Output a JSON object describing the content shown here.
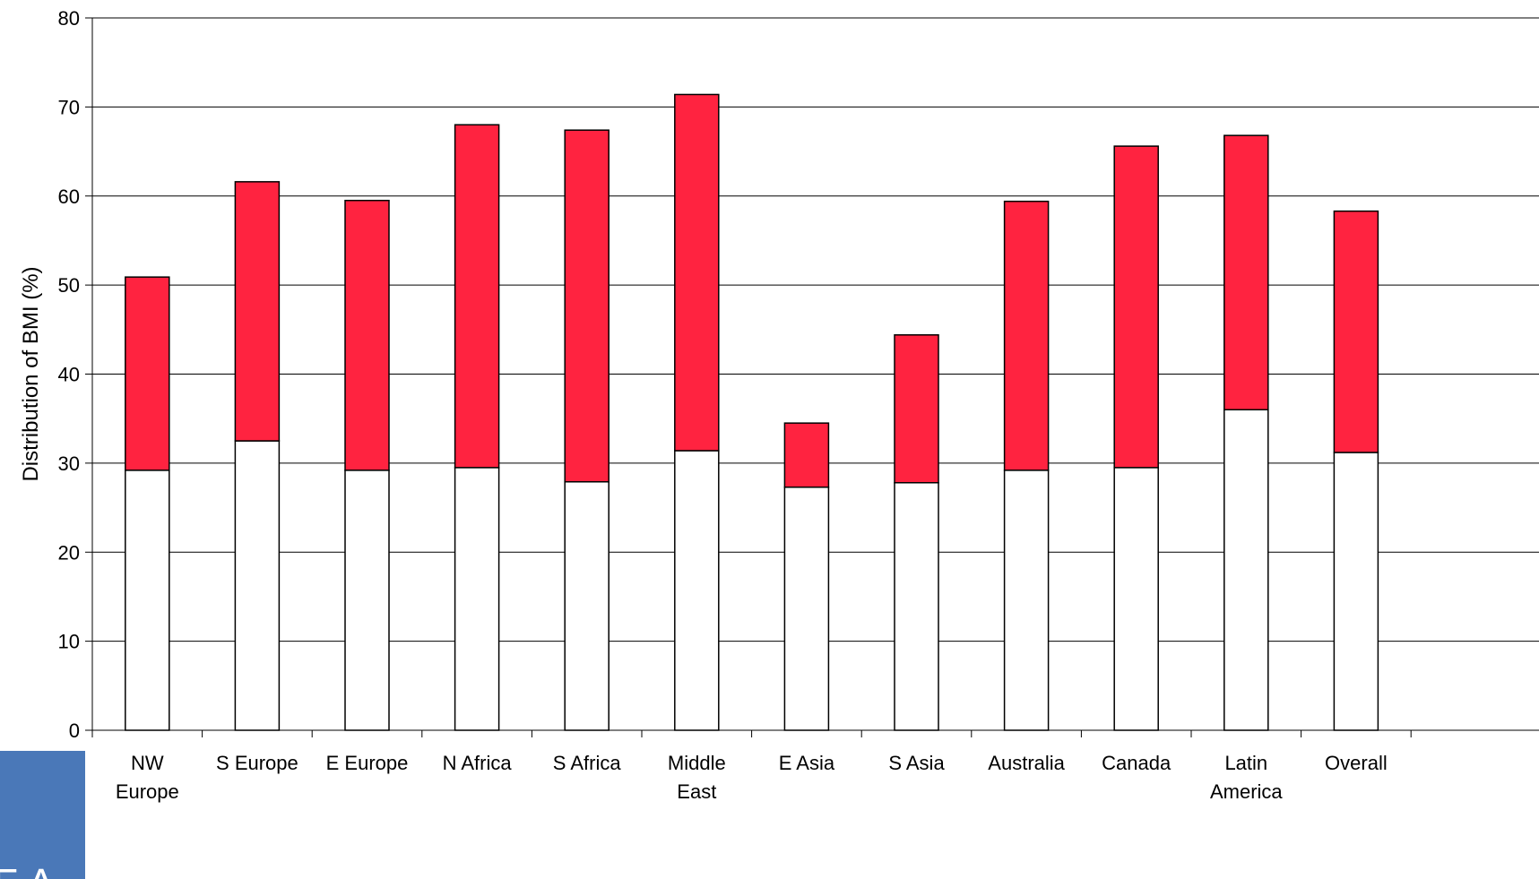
{
  "chart_data": {
    "type": "bar",
    "stacked": true,
    "title": "",
    "xlabel": "",
    "ylabel": "Distribution of BMI (%)",
    "ylim": [
      0,
      80
    ],
    "yticks": [
      0,
      10,
      20,
      30,
      40,
      50,
      60,
      70,
      80
    ],
    "grid": true,
    "legend": "none",
    "categories": [
      [
        "NW",
        "Europe"
      ],
      [
        "S Europe"
      ],
      [
        "E Europe"
      ],
      [
        "N Africa"
      ],
      [
        "S Africa"
      ],
      [
        "Middle",
        "East"
      ],
      [
        "E Asia"
      ],
      [
        "S Asia"
      ],
      [
        "Australia"
      ],
      [
        "Canada"
      ],
      [
        "Latin",
        "America"
      ],
      [
        "Overall"
      ]
    ],
    "series": [
      {
        "color": "#ffffff",
        "values": [
          29.2,
          32.5,
          29.2,
          29.5,
          27.9,
          31.4,
          27.3,
          27.8,
          29.2,
          29.5,
          36.0,
          31.2
        ]
      },
      {
        "color": "#ff2340",
        "values": [
          21.7,
          29.1,
          30.3,
          38.5,
          39.5,
          40.0,
          7.2,
          16.6,
          30.2,
          36.1,
          30.8,
          27.1
        ]
      }
    ]
  },
  "badge": {
    "text": "F A",
    "color": "#4a78b8"
  }
}
